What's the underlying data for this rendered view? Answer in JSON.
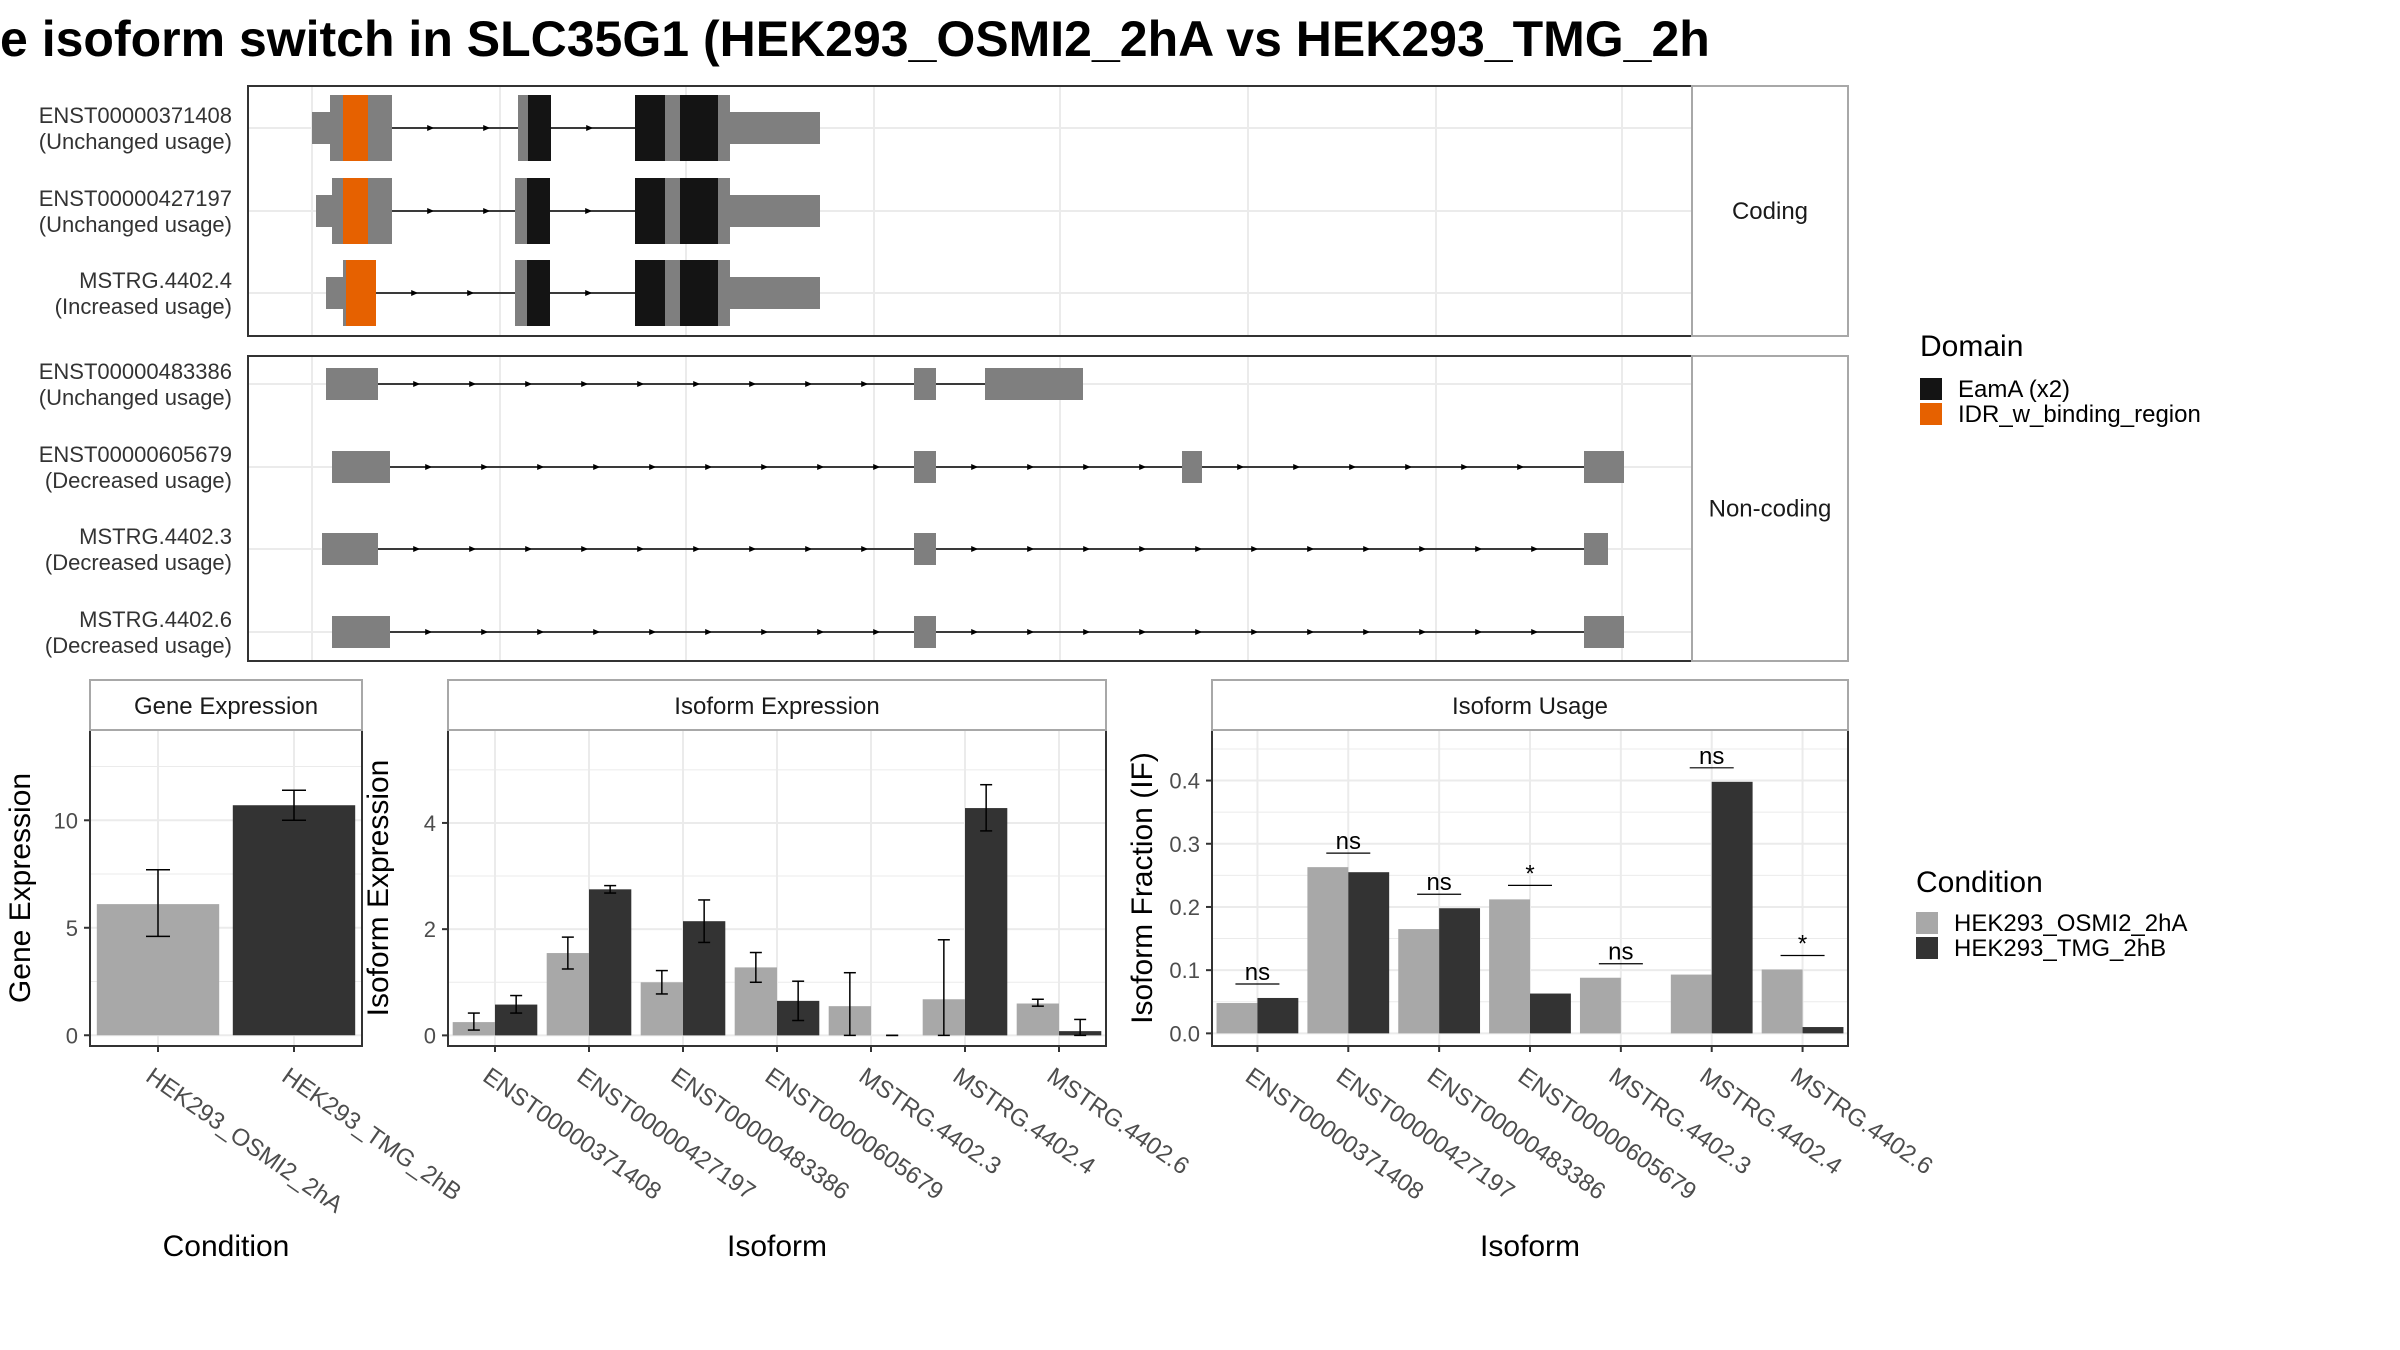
{
  "title": "e isoform switch in SLC35G1 (HEK293_OSMI2_2hA vs HEK293_TMG_2h",
  "colors": {
    "exon": "#7f7f7f",
    "domain_eama": "#141414",
    "domain_idr": "#e66100",
    "cond1": "#a8a8a8",
    "cond2": "#333333",
    "grid": "#ebebeb",
    "strip_bg": "#ffffff"
  },
  "structure": {
    "panels": [
      {
        "strip": "Coding",
        "transcripts": [
          {
            "id": "ENST00000371408",
            "usage": "(Unchanged usage)"
          },
          {
            "id": "ENST00000427197",
            "usage": "(Unchanged usage)"
          },
          {
            "id": "MSTRG.4402.4",
            "usage": "(Increased usage)"
          }
        ]
      },
      {
        "strip": "Non-coding",
        "transcripts": [
          {
            "id": "ENST00000483386",
            "usage": "(Unchanged usage)"
          },
          {
            "id": "ENST00000605679",
            "usage": "(Decreased usage)"
          },
          {
            "id": "MSTRG.4402.3",
            "usage": "(Decreased usage)"
          },
          {
            "id": "MSTRG.4402.6",
            "usage": "(Decreased usage)"
          }
        ]
      }
    ],
    "legend": {
      "title": "Domain",
      "items": [
        {
          "label": "EamA (x2)",
          "color": "#141414"
        },
        {
          "label": "IDR_w_binding_region",
          "color": "#e66100"
        }
      ]
    }
  },
  "chart_data": [
    {
      "type": "bar",
      "title": "Gene Expression",
      "xlabel": "Condition",
      "ylabel": "Gene Expression",
      "categories": [
        "HEK293_OSMI2_2hA",
        "HEK293_TMG_2hB"
      ],
      "values": [
        6.1,
        10.7
      ],
      "errors": [
        [
          4.6,
          7.7
        ],
        [
          10.0,
          11.4
        ]
      ],
      "ylim": [
        -0.5,
        14.2
      ],
      "yticks": [
        0,
        5,
        10
      ],
      "grid": true
    },
    {
      "type": "bar",
      "title": "Isoform Expression",
      "xlabel": "Isoform",
      "ylabel": "Isoform Expression",
      "categories": [
        "ENST00000371408",
        "ENST00000427197",
        "ENST00000483386",
        "ENST00000605679",
        "MSTRG.4402.3",
        "MSTRG.4402.4",
        "MSTRG.4402.6"
      ],
      "series": [
        {
          "name": "HEK293_OSMI2_2hA",
          "values": [
            0.25,
            1.55,
            1.0,
            1.28,
            0.55,
            0.68,
            0.6
          ],
          "errors": [
            [
              0.1,
              0.42
            ],
            [
              1.25,
              1.85
            ],
            [
              0.78,
              1.22
            ],
            [
              1.0,
              1.56
            ],
            [
              0.0,
              1.18
            ],
            [
              0.0,
              1.8
            ],
            [
              0.55,
              0.68
            ]
          ]
        },
        {
          "name": "HEK293_TMG_2hB",
          "values": [
            0.58,
            2.75,
            2.15,
            0.65,
            0.0,
            4.28,
            0.08
          ],
          "errors": [
            [
              0.42,
              0.75
            ],
            [
              2.68,
              2.82
            ],
            [
              1.75,
              2.55
            ],
            [
              0.28,
              1.02
            ],
            [
              0.0,
              0.0
            ],
            [
              3.85,
              4.72
            ],
            [
              0.0,
              0.3
            ]
          ]
        }
      ],
      "ylim": [
        -0.2,
        5.75
      ],
      "yticks": [
        0,
        2,
        4
      ],
      "grid": true
    },
    {
      "type": "bar",
      "title": "Isoform Usage",
      "xlabel": "Isoform",
      "ylabel": "Isoform Fraction (IF)",
      "categories": [
        "ENST00000371408",
        "ENST00000427197",
        "ENST00000483386",
        "ENST00000605679",
        "MSTRG.4402.3",
        "MSTRG.4402.4",
        "MSTRG.4402.6"
      ],
      "series": [
        {
          "name": "HEK293_OSMI2_2hA",
          "values": [
            0.048,
            0.263,
            0.165,
            0.212,
            0.088,
            0.093,
            0.101
          ]
        },
        {
          "name": "HEK293_TMG_2hB",
          "values": [
            0.056,
            0.255,
            0.198,
            0.063,
            0.0,
            0.398,
            0.01
          ]
        }
      ],
      "significance": [
        "ns",
        "ns",
        "ns",
        "*",
        "ns",
        "ns",
        "*"
      ],
      "ylim": [
        -0.02,
        0.48
      ],
      "yticks": [
        0.0,
        0.1,
        0.2,
        0.3,
        0.4
      ],
      "ytick_labels": [
        "0.0",
        "0.1",
        "0.2",
        "0.3",
        "0.4"
      ],
      "grid": true
    }
  ],
  "condition_legend": {
    "title": "Condition",
    "items": [
      {
        "label": "HEK293_OSMI2_2hA",
        "color": "#a8a8a8"
      },
      {
        "label": "HEK293_TMG_2hB",
        "color": "#333333"
      }
    ]
  }
}
